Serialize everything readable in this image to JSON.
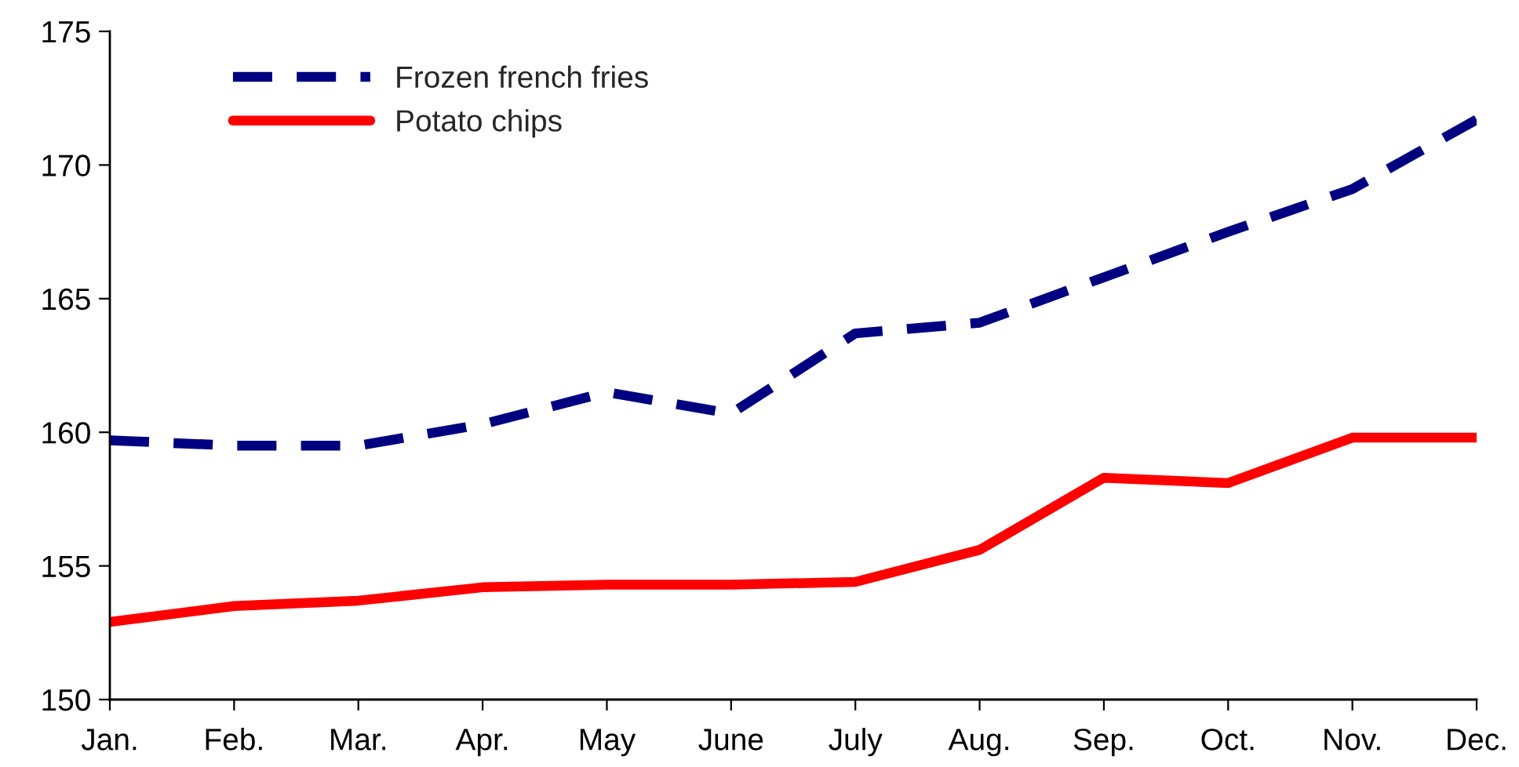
{
  "chart_data": {
    "type": "line",
    "categories": [
      "Jan.",
      "Feb.",
      "Mar.",
      "Apr.",
      "May",
      "June",
      "July",
      "Aug.",
      "Sep.",
      "Oct.",
      "Nov.",
      "Dec."
    ],
    "series": [
      {
        "name": "Frozen french fries",
        "color": "#000080",
        "line_style": "dashed",
        "values": [
          159.7,
          159.5,
          159.5,
          160.3,
          161.5,
          160.7,
          163.7,
          164.1,
          165.8,
          167.5,
          169.1,
          171.7
        ]
      },
      {
        "name": "Potato chips",
        "color": "#ff0000",
        "line_style": "solid",
        "values": [
          152.9,
          153.5,
          153.7,
          154.2,
          154.3,
          154.3,
          154.4,
          155.6,
          158.3,
          158.1,
          159.8,
          159.8
        ]
      }
    ],
    "ylim": [
      150,
      175
    ],
    "yticks": [
      150,
      155,
      160,
      165,
      170,
      175
    ],
    "grid": false,
    "legend": "top left",
    "marker": "none"
  }
}
